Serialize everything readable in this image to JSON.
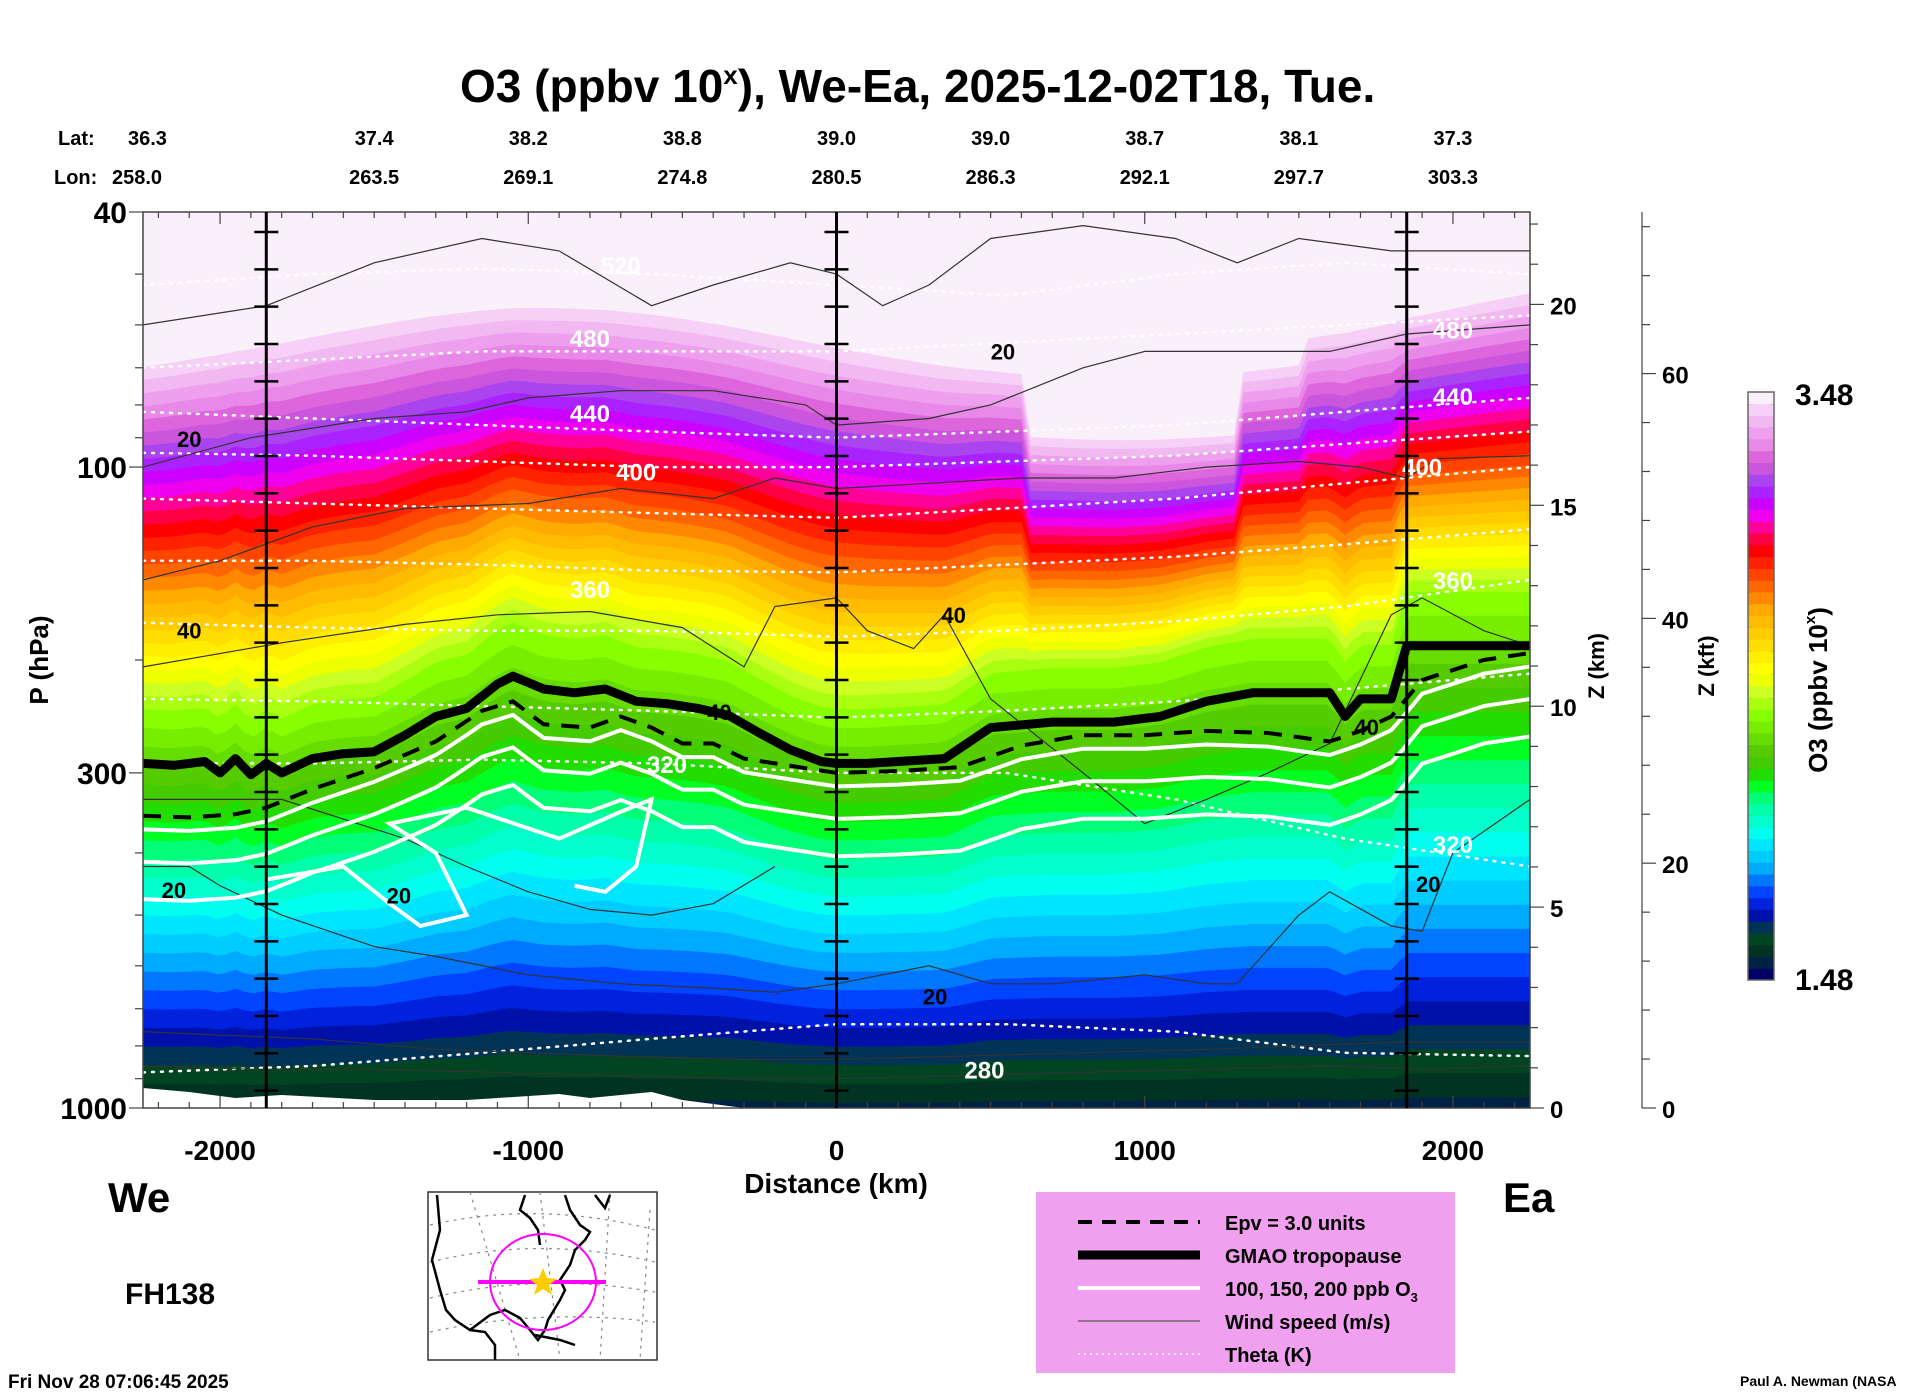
{
  "chart_data": {
    "type": "heatmap",
    "title": "O3 (ppbv 10",
    "title_sup": "x",
    "title_rest": "), We-Ea, 2025-12-02T18, Tue.",
    "xlabel": "Distance (km)",
    "ylabel": "P (hPa)",
    "xlim": [
      -2250,
      2250
    ],
    "ylim_hpa": [
      1000,
      40
    ],
    "y_scale": "log",
    "x_ticks": [
      -2000,
      -1000,
      0,
      1000,
      2000
    ],
    "x_tick_labels": [
      "-2000",
      "-1000",
      "0",
      "1000",
      "2000"
    ],
    "y_ticks": [
      40,
      100,
      300,
      1000
    ],
    "y_tick_labels": [
      "40",
      "100",
      "300",
      "1000"
    ],
    "z_km_axis": {
      "label": "Z (km)",
      "ticks": [
        0,
        5,
        10,
        15,
        20
      ],
      "range": [
        0,
        22.3
      ]
    },
    "z_kft_axis": {
      "label": "Z (kft)",
      "ticks": [
        0,
        20,
        40,
        60
      ],
      "range": [
        0,
        73.2
      ]
    },
    "lat_label": "Lat:",
    "lon_label": "Lon:",
    "lat_values": [
      "36.3",
      "37.4",
      "38.2",
      "38.8",
      "39.0",
      "39.0",
      "38.7",
      "38.1",
      "37.3"
    ],
    "lon_values": [
      "258.0",
      "263.5",
      "269.1",
      "274.8",
      "280.5",
      "286.3",
      "292.1",
      "297.7",
      "303.3"
    ],
    "lat_lon_positions_km": [
      -2000,
      -1500,
      -1000,
      -500,
      0,
      500,
      1000,
      1500,
      2000
    ],
    "vertical_markers_km": [
      -1850,
      0,
      1850
    ],
    "left_end_label": "We",
    "right_end_label": "Ea",
    "forecast_hour": "FH138",
    "colorbar": {
      "label": "O3 (ppbv 10",
      "label_sup": "x",
      "label_rest": ")",
      "min": 1.48,
      "max": 3.48,
      "min_label": "1.48",
      "max_label": "3.48",
      "colors": [
        "#000066",
        "#002244",
        "#003322",
        "#004422",
        "#003355",
        "#0011aa",
        "#0022dd",
        "#0044ff",
        "#0077ff",
        "#00aaff",
        "#00ccff",
        "#00e5ff",
        "#00ffee",
        "#00ffcc",
        "#00ffaa",
        "#00ff77",
        "#00ff22",
        "#22dd00",
        "#44cc00",
        "#55cc00",
        "#66dd00",
        "#77ee00",
        "#88ff00",
        "#aaff11",
        "#ccff22",
        "#eeff00",
        "#ffff00",
        "#ffee00",
        "#ffdd00",
        "#ffcc00",
        "#ffbb00",
        "#ffaa00",
        "#ff8800",
        "#ff6600",
        "#ff4400",
        "#ff2200",
        "#ff0000",
        "#ff0044",
        "#ff0099",
        "#ee00ee",
        "#cc00ff",
        "#aa22ff",
        "#aa44ee",
        "#cc55dd",
        "#dd66dd",
        "#e888e8",
        "#eea0ee",
        "#f2b8f2",
        "#f6d0f6",
        "#faf0fa"
      ]
    },
    "theta_labels": [
      {
        "text": "520",
        "x_km": -700,
        "p": 50
      },
      {
        "text": "480",
        "x_km": -800,
        "p": 65
      },
      {
        "text": "440",
        "x_km": -800,
        "p": 85
      },
      {
        "text": "400",
        "x_km": -650,
        "p": 105
      },
      {
        "text": "360",
        "x_km": -800,
        "p": 160
      },
      {
        "text": "320",
        "x_km": -550,
        "p": 300
      },
      {
        "text": "280",
        "x_km": 480,
        "p": 900
      },
      {
        "text": "480",
        "x_km": 2000,
        "p": 63
      },
      {
        "text": "440",
        "x_km": 2000,
        "p": 80
      },
      {
        "text": "400",
        "x_km": 1900,
        "p": 103
      },
      {
        "text": "360",
        "x_km": 2000,
        "p": 155
      },
      {
        "text": "320",
        "x_km": 2000,
        "p": 400
      }
    ],
    "wind_labels": [
      {
        "text": "20",
        "x_km": -2100,
        "p": 93
      },
      {
        "text": "40",
        "x_km": -2100,
        "p": 185
      },
      {
        "text": "20",
        "x_km": -2150,
        "p": 470
      },
      {
        "text": "20",
        "x_km": -1420,
        "p": 480
      },
      {
        "text": "40",
        "x_km": -380,
        "p": 248
      },
      {
        "text": "20",
        "x_km": 540,
        "p": 68
      },
      {
        "text": "40",
        "x_km": 380,
        "p": 175
      },
      {
        "text": "40",
        "x_km": 1720,
        "p": 262
      },
      {
        "text": "20",
        "x_km": 320,
        "p": 690
      },
      {
        "text": "20",
        "x_km": 1920,
        "p": 460
      }
    ],
    "tropopause_hpa": {
      "x_km": [
        -2250,
        -2150,
        -2050,
        -2000,
        -1950,
        -1900,
        -1850,
        -1800,
        -1700,
        -1600,
        -1500,
        -1400,
        -1300,
        -1200,
        -1100,
        -1050,
        -950,
        -850,
        -750,
        -650,
        -550,
        -450,
        -350,
        -250,
        -150,
        -50,
        0,
        100,
        200,
        350,
        500,
        700,
        900,
        1050,
        1200,
        1350,
        1500,
        1600,
        1650,
        1700,
        1800,
        1850,
        2000,
        2100,
        2250
      ],
      "p": [
        290,
        292,
        288,
        300,
        285,
        302,
        290,
        300,
        285,
        280,
        278,
        262,
        245,
        238,
        218,
        212,
        222,
        225,
        222,
        232,
        234,
        238,
        244,
        260,
        276,
        288,
        290,
        290,
        288,
        285,
        255,
        250,
        250,
        245,
        232,
        225,
        225,
        225,
        245,
        230,
        230,
        190,
        190,
        190,
        190
      ]
    },
    "epv_3pvu_hpa": {
      "x_km": [
        -2250,
        -2100,
        -1950,
        -1850,
        -1700,
        -1500,
        -1300,
        -1150,
        -1050,
        -950,
        -800,
        -700,
        -600,
        -500,
        -400,
        -300,
        -200,
        -100,
        0,
        200,
        400,
        600,
        800,
        1000,
        1200,
        1400,
        1600,
        1700,
        1800,
        1900,
        2100,
        2250
      ],
      "p": [
        350,
        352,
        348,
        340,
        318,
        295,
        268,
        240,
        232,
        252,
        255,
        245,
        255,
        270,
        270,
        285,
        290,
        295,
        300,
        298,
        294,
        272,
        262,
        262,
        258,
        260,
        268,
        258,
        245,
        215,
        200,
        195
      ]
    },
    "legend": {
      "items": [
        {
          "label": "Epv = 3.0 units",
          "style": "dashed"
        },
        {
          "label": "GMAO tropopause",
          "style": "thick"
        },
        {
          "label": "100, 150, 200 ppb O",
          "sub": "3",
          "style": "white"
        },
        {
          "label": "Wind speed (m/s)",
          "style": "thin"
        },
        {
          "label": "Theta (K)",
          "style": "dotted"
        }
      ],
      "background": "#f0a0ee"
    }
  },
  "timestamp": "Fri Nov 28 07:06:45 2025",
  "credit": "Paul A. Newman (NASA",
  "map_inset": {
    "description": "North America map with magenta circle and section line",
    "accent": "#ff00ff",
    "star_color": "#ffcc00"
  }
}
